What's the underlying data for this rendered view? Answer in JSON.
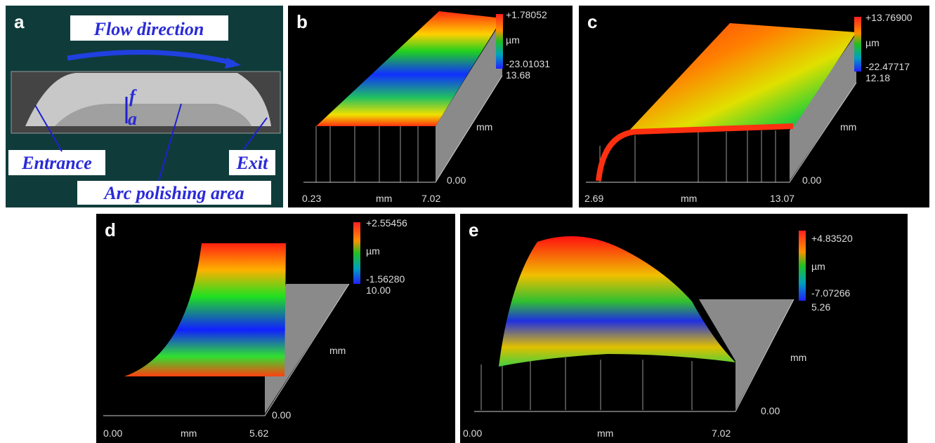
{
  "panels": {
    "a": {
      "label": "a",
      "flow_direction": "Flow direction",
      "f": "f",
      "a": "a",
      "entrance": "Entrance",
      "exit": "Exit",
      "arc": "Arc polishing area"
    },
    "b": {
      "label": "b",
      "max": "+1.78052",
      "unit": "µm",
      "min": "-23.01031",
      "depth": "13.68",
      "y_unit": "mm",
      "y_start": "0.00",
      "x_start": "0.23",
      "x_unit": "mm",
      "x_end": "7.02"
    },
    "c": {
      "label": "c",
      "max": "+13.76900",
      "unit": "µm",
      "min": "-22.47717",
      "depth": "12.18",
      "y_unit": "mm",
      "y_start": "0.00",
      "x_start": "2.69",
      "x_unit": "mm",
      "x_end": "13.07"
    },
    "d": {
      "label": "d",
      "max": "+2.55456",
      "unit": "µm",
      "min": "-1.56280",
      "depth": "10.00",
      "y_unit": "mm",
      "y_start": "0.00",
      "x_start": "0.00",
      "x_unit": "mm",
      "x_end": "5.62"
    },
    "e": {
      "label": "e",
      "max": "+4.83520",
      "unit": "µm",
      "min": "-7.07266",
      "depth": "5.26",
      "y_unit": "mm",
      "y_start": "0.00",
      "x_start": "0.00",
      "x_unit": "mm",
      "x_end": "7.02"
    }
  }
}
